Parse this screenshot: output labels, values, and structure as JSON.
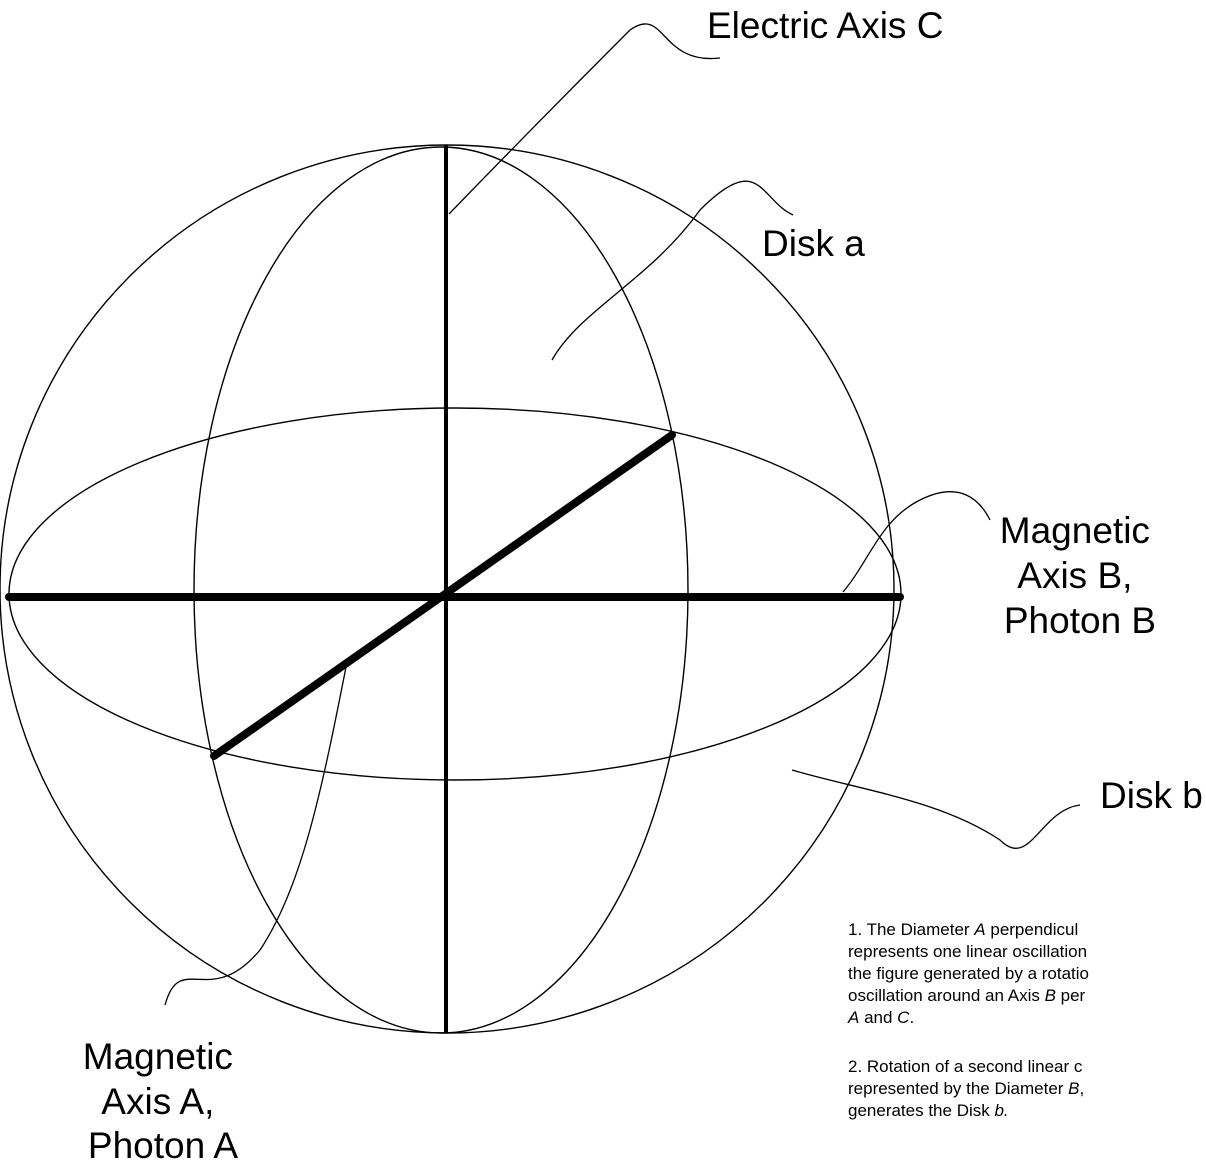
{
  "labels": {
    "electric_axis": "Electric Axis C",
    "disk_a": "Disk a",
    "magnetic_b": [
      "Magnetic",
      "Axis B,",
      "Photon B"
    ],
    "disk_b": "Disk b",
    "magnetic_a": [
      "Magnetic",
      "Axis A,",
      "Photon A"
    ]
  },
  "notes": {
    "note1": {
      "line1": [
        "1.  The Diameter ",
        "A",
        " perpendicul"
      ],
      "line2": "represents one linear oscillation",
      "line3": "the figure generated by a rotatio",
      "line4": [
        "oscillation around an Axis ",
        "B",
        " per"
      ],
      "line5": [
        "A",
        " and ",
        "C",
        "."
      ]
    },
    "note2": {
      "line1": "2.  Rotation of a second linear c",
      "line2": [
        "represented by the Diameter ",
        "B",
        ","
      ],
      "line3": [
        "generates the Disk ",
        "b."
      ]
    }
  },
  "colors": {
    "stroke": "#000000",
    "background": "#ffffff"
  }
}
